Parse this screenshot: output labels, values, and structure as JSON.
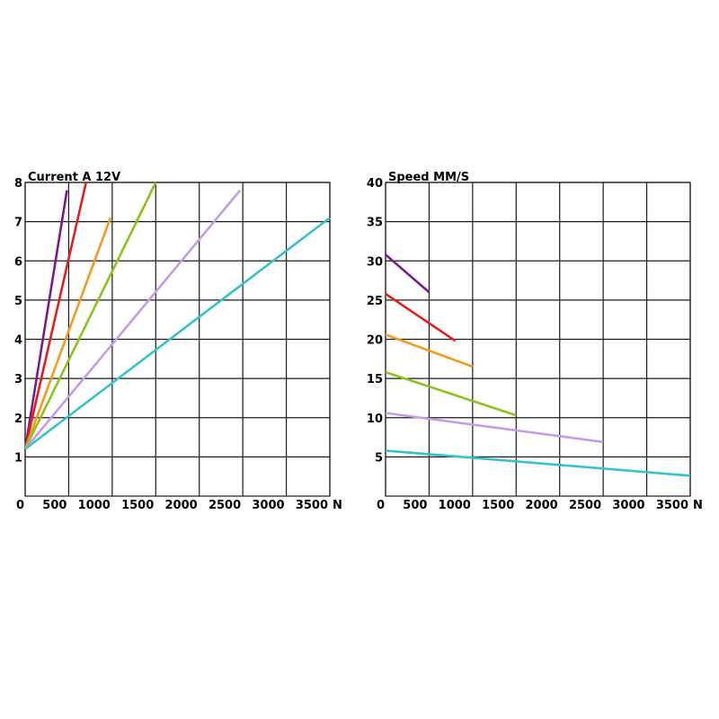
{
  "chart_data": [
    {
      "type": "line",
      "title": "Current A 12V",
      "xlabel": "N",
      "ylabel": "",
      "xlim": [
        0,
        3500
      ],
      "ylim": [
        0,
        8
      ],
      "x_ticks": [
        0,
        500,
        1000,
        1500,
        2000,
        2500,
        3000,
        3500
      ],
      "x_tick_labels": [
        "0",
        "500",
        "1000",
        "1500",
        "2000",
        "2500",
        "3000",
        "3500"
      ],
      "y_ticks": [
        1,
        2,
        3,
        4,
        5,
        6,
        7,
        8
      ],
      "y_tick_labels": [
        "1",
        "2",
        "3",
        "4",
        "5",
        "6",
        "7",
        "8"
      ],
      "grid": true,
      "series": [
        {
          "color": "#7b1a8c",
          "x": [
            0,
            480
          ],
          "y": [
            1.2,
            7.8
          ]
        },
        {
          "color": "#e0201c",
          "x": [
            0,
            700
          ],
          "y": [
            1.2,
            8.0
          ]
        },
        {
          "color": "#f39a1e",
          "x": [
            0,
            980
          ],
          "y": [
            1.2,
            7.1
          ]
        },
        {
          "color": "#8cc21a",
          "x": [
            0,
            1500
          ],
          "y": [
            1.2,
            8.0
          ]
        },
        {
          "color": "#c39be8",
          "x": [
            0,
            2470
          ],
          "y": [
            1.2,
            7.8
          ]
        },
        {
          "color": "#36c3c8",
          "x": [
            0,
            3500
          ],
          "y": [
            1.2,
            7.1
          ]
        }
      ]
    },
    {
      "type": "line",
      "title": "Speed MM/S",
      "xlabel": "N",
      "ylabel": "",
      "xlim": [
        0,
        3500
      ],
      "ylim": [
        0,
        40
      ],
      "x_ticks": [
        0,
        500,
        1000,
        1500,
        2000,
        2500,
        3000,
        3500
      ],
      "x_tick_labels": [
        "0",
        "500",
        "1000",
        "1500",
        "2000",
        "2500",
        "3000",
        "3500"
      ],
      "y_ticks": [
        5,
        10,
        15,
        20,
        25,
        30,
        35,
        40
      ],
      "y_tick_labels": [
        "5",
        "10",
        "15",
        "20",
        "25",
        "30",
        "35",
        "40"
      ],
      "grid": true,
      "series": [
        {
          "color": "#7b1a8c",
          "x": [
            0,
            500
          ],
          "y": [
            30.8,
            26.0
          ]
        },
        {
          "color": "#e0201c",
          "x": [
            0,
            800
          ],
          "y": [
            25.8,
            19.8
          ]
        },
        {
          "color": "#f39a1e",
          "x": [
            0,
            1000
          ],
          "y": [
            20.6,
            16.5
          ]
        },
        {
          "color": "#8cc21a",
          "x": [
            0,
            1500
          ],
          "y": [
            15.8,
            10.3
          ]
        },
        {
          "color": "#c39be8",
          "x": [
            0,
            2500
          ],
          "y": [
            10.6,
            6.9
          ]
        },
        {
          "color": "#36c3c8",
          "x": [
            0,
            3500
          ],
          "y": [
            5.8,
            2.6
          ]
        }
      ]
    }
  ]
}
